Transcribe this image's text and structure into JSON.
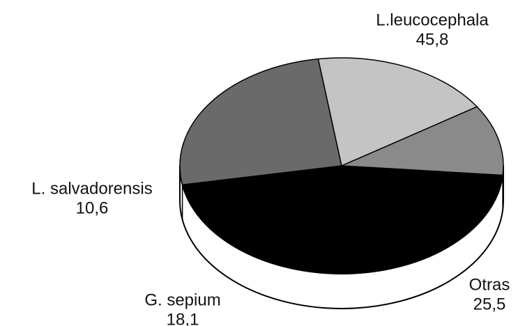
{
  "chart_data": {
    "type": "pie",
    "categories": [
      "L.leucocephala",
      "Otras",
      "G. sepium",
      "L. salvadorensis"
    ],
    "values": [
      45.8,
      25.5,
      18.1,
      10.6
    ],
    "value_labels": [
      "45,8",
      "25,5",
      "18,1",
      "10,6"
    ],
    "colors": [
      "#000000",
      "#6a6a6a",
      "#c4c4c4",
      "#8a8a8a"
    ]
  }
}
